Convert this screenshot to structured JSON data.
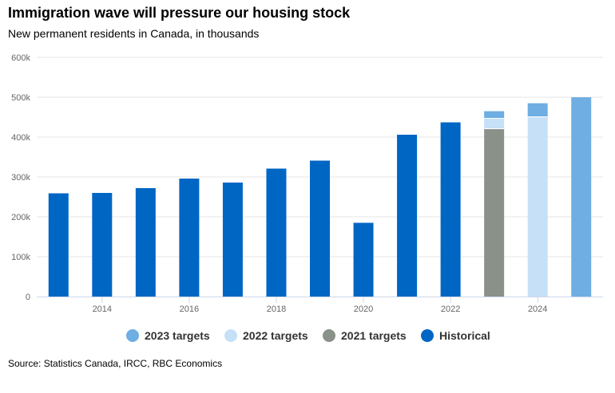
{
  "title": "Immigration wave will pressure our housing stock",
  "subtitle": "New permanent residents in Canada, in thousands",
  "source": "Source: Statistics Canada, IRCC, RBC Economics",
  "colors": {
    "historical": "#0066c4",
    "targets_2021": "#8a9189",
    "targets_2022": "#c5e0f7",
    "targets_2023": "#6eaee3",
    "gridline": "#e6e6e6",
    "axis": "#ccd6eb"
  },
  "legend": [
    {
      "label": "2023 targets",
      "color": "#6eaee3"
    },
    {
      "label": "2022 targets",
      "color": "#c5e0f7"
    },
    {
      "label": "2021 targets",
      "color": "#8a9189"
    },
    {
      "label": "Historical",
      "color": "#0066c4"
    }
  ],
  "chart_data": {
    "type": "bar",
    "stacked": true,
    "title": "Immigration wave will pressure our housing stock",
    "subtitle": "New permanent residents in Canada, in thousands",
    "x": [
      2013,
      2014,
      2015,
      2016,
      2017,
      2018,
      2019,
      2020,
      2021,
      2022,
      2023,
      2024,
      2025
    ],
    "xticks": [
      2014,
      2016,
      2018,
      2020,
      2022,
      2024
    ],
    "xtick_labels": [
      "2014",
      "2016",
      "2018",
      "2020",
      "2022",
      "2024"
    ],
    "ylim": [
      0,
      600
    ],
    "yticks": [
      0,
      100,
      200,
      300,
      400,
      500,
      600
    ],
    "ytick_labels": [
      "0",
      "100k",
      "200k",
      "300k",
      "400k",
      "500k",
      "600k"
    ],
    "grid": true,
    "legend_position": "bottom",
    "series": [
      {
        "name": "Historical",
        "color": "#0066c4",
        "values": [
          259,
          260,
          272,
          296,
          286,
          321,
          341,
          185,
          406,
          437,
          null,
          null,
          null
        ]
      },
      {
        "name": "2021 targets",
        "color": "#8a9189",
        "values": [
          null,
          null,
          null,
          null,
          null,
          null,
          null,
          null,
          null,
          null,
          421,
          null,
          null
        ]
      },
      {
        "name": "2022 targets",
        "color": "#c5e0f7",
        "values": [
          null,
          null,
          null,
          null,
          null,
          null,
          null,
          null,
          null,
          null,
          26,
          451,
          null
        ]
      },
      {
        "name": "2023 targets",
        "color": "#6eaee3",
        "values": [
          null,
          null,
          null,
          null,
          null,
          null,
          null,
          null,
          null,
          null,
          18,
          34,
          500
        ]
      }
    ]
  }
}
